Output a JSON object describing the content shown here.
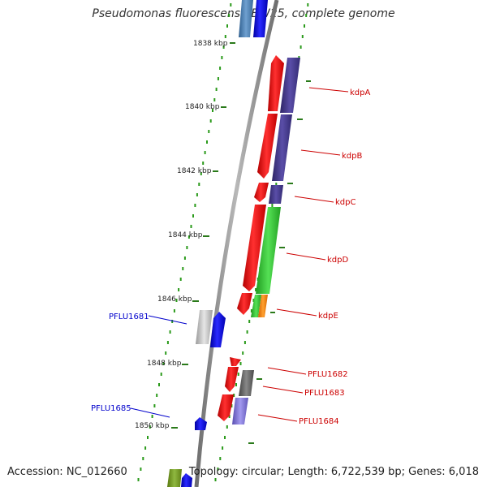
{
  "title": "Pseudomonas fluorescens SBW25, complete genome",
  "footer": {
    "accession": "Accession: NC_012660",
    "summary": "Topology: circular; Length: 6,722,539 bp; Genes: 6,018"
  },
  "ruler": {
    "ticks": [
      "1838 kbp",
      "1840 kbp",
      "1842 kbp",
      "1844 kbp",
      "1846 kbp",
      "1848 kbp",
      "1850 kbp"
    ]
  },
  "gene_labels": {
    "forward": [
      "kdpA",
      "kdpB",
      "kdpC",
      "kdpD",
      "kdpE",
      "PFLU1682",
      "PFLU1683",
      "PFLU1684"
    ],
    "reverse": [
      "PFLU1681",
      "PFLU1685"
    ]
  },
  "colors": {
    "backbone": "#888888",
    "tick": "#2a7a1a",
    "cds": "#ee1111",
    "blue_gene": "#1111ee",
    "purple_gene": "#4a3d8f",
    "green_gene": "#33cc33",
    "orange_gene": "#ff8800",
    "forward_label": "#cc0000",
    "reverse_label": "#0000cc"
  }
}
